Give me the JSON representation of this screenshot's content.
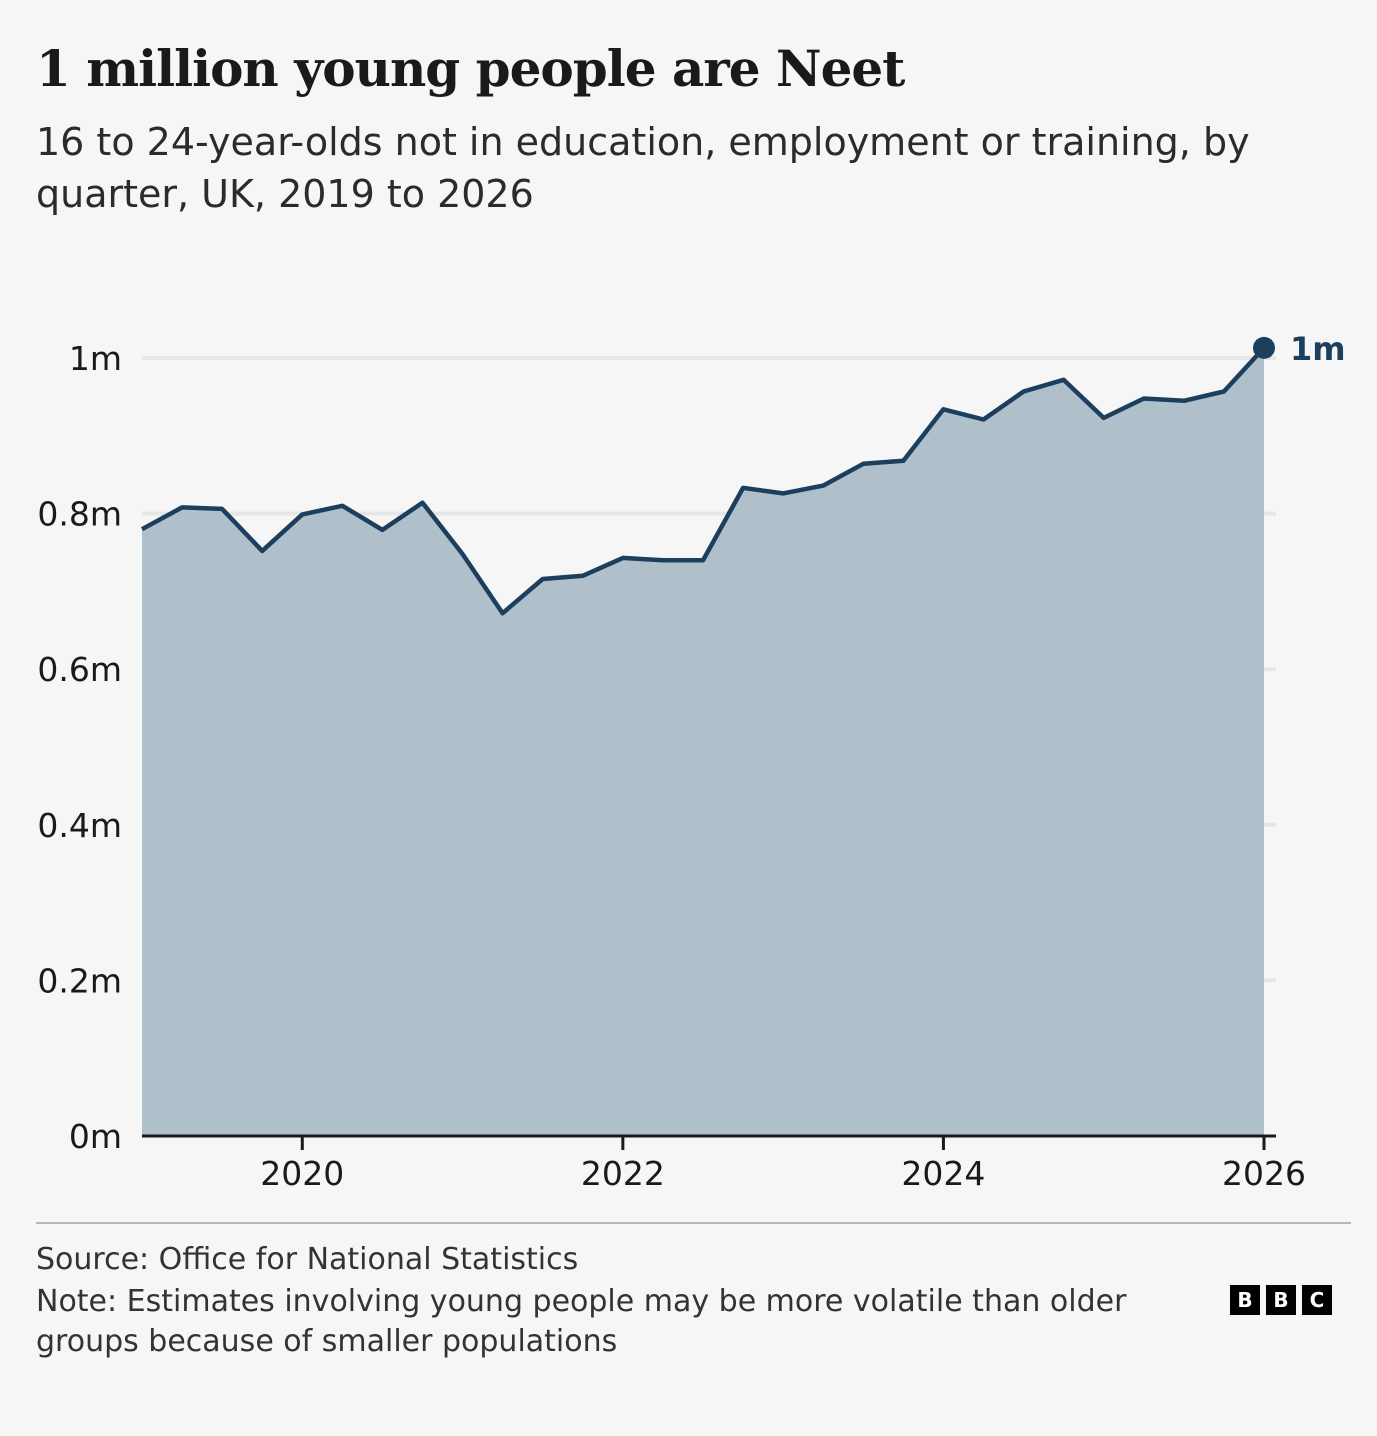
{
  "title": "1 million young people are Neet",
  "subtitle": "16 to 24-year-olds not in education, employment or training, by quarter, UK, 2019 to 2026",
  "chart_data": {
    "type": "area",
    "title": "1 million young people are Neet",
    "subtitle": "16 to 24-year-olds not in education, employment or training, by quarter, UK, 2019 to 2026",
    "x": [
      2019.0,
      2019.25,
      2019.5,
      2019.75,
      2020.0,
      2020.25,
      2020.5,
      2020.75,
      2021.0,
      2021.25,
      2021.5,
      2021.75,
      2022.0,
      2022.25,
      2022.5,
      2022.75,
      2023.0,
      2023.25,
      2023.5,
      2023.75,
      2024.0,
      2024.25,
      2024.5,
      2024.75,
      2025.0,
      2025.25,
      2025.5,
      2025.75,
      2026.0
    ],
    "series": [
      {
        "values": [
          0.78,
          0.808,
          0.806,
          0.752,
          0.799,
          0.81,
          0.779,
          0.814,
          0.748,
          0.672,
          0.716,
          0.72,
          0.743,
          0.74,
          0.74,
          0.833,
          0.826,
          0.836,
          0.864,
          0.868,
          0.934,
          0.921,
          0.957,
          0.972,
          0.923,
          0.948,
          0.945,
          0.957,
          1.013
        ],
        "color": "#1d3f5e"
      }
    ],
    "xlim": [
      2019,
      2026
    ],
    "ylim": [
      0,
      1
    ],
    "xticks": [
      "2020",
      "2022",
      "2024",
      "2026"
    ],
    "xtick_values": [
      2020,
      2022,
      2024,
      2026
    ],
    "yticks": [
      "0m",
      "0.2m",
      "0.4m",
      "0.6m",
      "0.8m",
      "1m"
    ],
    "ytick_values": [
      0,
      0.2,
      0.4,
      0.6,
      0.8,
      1.0
    ],
    "grid": true,
    "end_label": "1m",
    "colors": {
      "line": "#1d3f5e",
      "fill": "#b0c0cb",
      "grid": "#e6e6e6",
      "axis": "#1a1a1a"
    }
  },
  "footer": {
    "source": "Source: Office for National Statistics",
    "note": "Note: Estimates involving young people may be more volatile than older groups because of smaller populations",
    "logo_letters": [
      "B",
      "B",
      "C"
    ]
  }
}
